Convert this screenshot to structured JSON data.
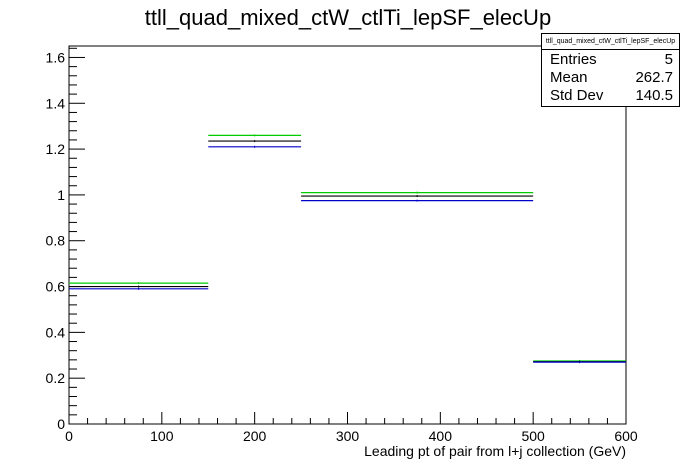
{
  "chart_data": {
    "type": "histogram",
    "title": "ttll_quad_mixed_ctW_ctlTi_lepSF_elecUp",
    "xlabel": "Leading pt of pair from l+j collection (GeV)",
    "ylabel": "",
    "xlim": [
      0,
      600
    ],
    "ylim": [
      0,
      1.65
    ],
    "x_ticks": [
      0,
      100,
      200,
      300,
      400,
      500,
      600
    ],
    "y_ticks": [
      0,
      0.2,
      0.4,
      0.6,
      0.8,
      1,
      1.2,
      1.4,
      1.6
    ],
    "x_tick_labels": [
      "0",
      "100",
      "200",
      "300",
      "400",
      "500",
      "600"
    ],
    "y_tick_labels": [
      "0",
      "0.2",
      "0.4",
      "0.6",
      "0.8",
      "1",
      "1.2",
      "1.4",
      "1.6"
    ],
    "bin_edges": [
      0,
      150,
      250,
      500,
      600
    ],
    "series": [
      {
        "color": "#00cc00",
        "values": [
          0.615,
          1.26,
          1.01,
          0.275
        ]
      },
      {
        "color": "#000000",
        "values": [
          0.6,
          1.235,
          0.995,
          0.272
        ]
      },
      {
        "color": "#0000cc",
        "values": [
          0.59,
          1.21,
          0.975,
          0.27
        ]
      }
    ],
    "grid": false,
    "stats": {
      "name": "ttll_quad_mixed_ctW_ctlTi_lepSF_elecUp",
      "entries_label": "Entries",
      "entries": "5",
      "mean_label": "Mean",
      "mean": "262.7",
      "stddev_label": "Std Dev",
      "stddev": "140.5"
    }
  }
}
